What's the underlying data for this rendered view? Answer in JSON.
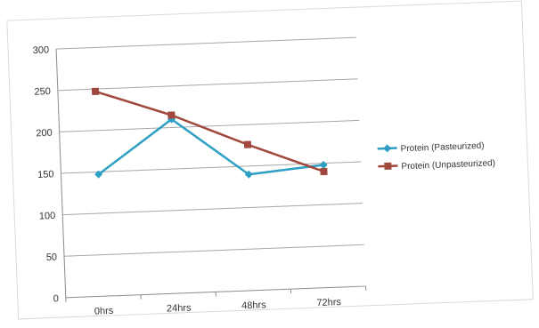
{
  "chart_data": {
    "type": "line",
    "categories": [
      "0hrs",
      "24hrs",
      "48hrs",
      "72hrs"
    ],
    "y_ticks": [
      "0",
      "50",
      "100",
      "150",
      "200",
      "250",
      "300"
    ],
    "ylim": [
      0,
      300
    ],
    "grid": true,
    "legend_position": "right",
    "series": [
      {
        "name": "Protein (Pasteurized)",
        "values": [
          147,
          210,
          140,
          148
        ],
        "color": "#2e9fc4",
        "marker": "diamond"
      },
      {
        "name": "Protein (Unpasteurized)",
        "values": [
          247,
          215,
          176,
          140
        ],
        "color": "#a0483c",
        "marker": "square"
      }
    ]
  }
}
